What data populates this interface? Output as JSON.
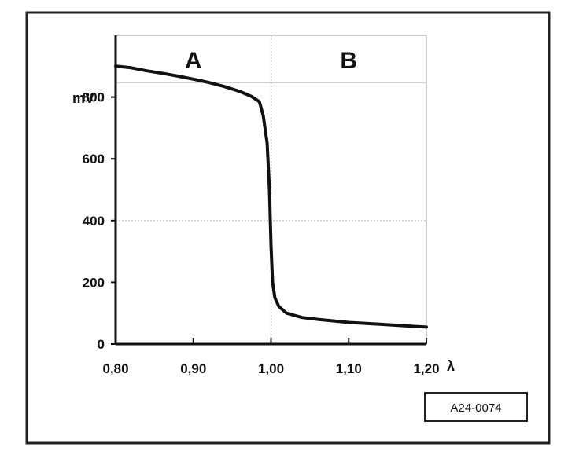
{
  "chart_data": {
    "type": "line",
    "ylabel": "mV",
    "xlabel": "λ",
    "x_tick_labels": [
      "0,80",
      "0,90",
      "1,00",
      "1,10",
      "1,20"
    ],
    "x_tick_values": [
      0.8,
      0.9,
      1.0,
      1.1,
      1.2
    ],
    "y_tick_labels": [
      "0",
      "200",
      "400",
      "600",
      "800"
    ],
    "y_tick_values": [
      0,
      200,
      400,
      600,
      800
    ],
    "xlim": [
      0.8,
      1.2
    ],
    "ylim": [
      0,
      1000
    ],
    "regions": [
      {
        "label": "A",
        "x_range": [
          0.8,
          1.0
        ]
      },
      {
        "label": "B",
        "x_range": [
          1.0,
          1.2
        ]
      }
    ],
    "grid": true,
    "series": [
      {
        "x": [
          0.8,
          0.82,
          0.84,
          0.86,
          0.88,
          0.9,
          0.92,
          0.94,
          0.96,
          0.975,
          0.985,
          0.99,
          0.995,
          0.998,
          1.0,
          1.002,
          1.005,
          1.01,
          1.02,
          1.04,
          1.06,
          1.08,
          1.1,
          1.14,
          1.18,
          1.2
        ],
        "y": [
          900,
          895,
          885,
          877,
          868,
          858,
          847,
          834,
          818,
          802,
          785,
          740,
          650,
          500,
          320,
          200,
          150,
          122,
          100,
          86,
          80,
          75,
          70,
          64,
          58,
          55
        ]
      }
    ]
  },
  "reference_code": "A24-0074",
  "colors": {
    "line": "#111111",
    "grid": "#bdbdbd",
    "frame": "#222222"
  }
}
